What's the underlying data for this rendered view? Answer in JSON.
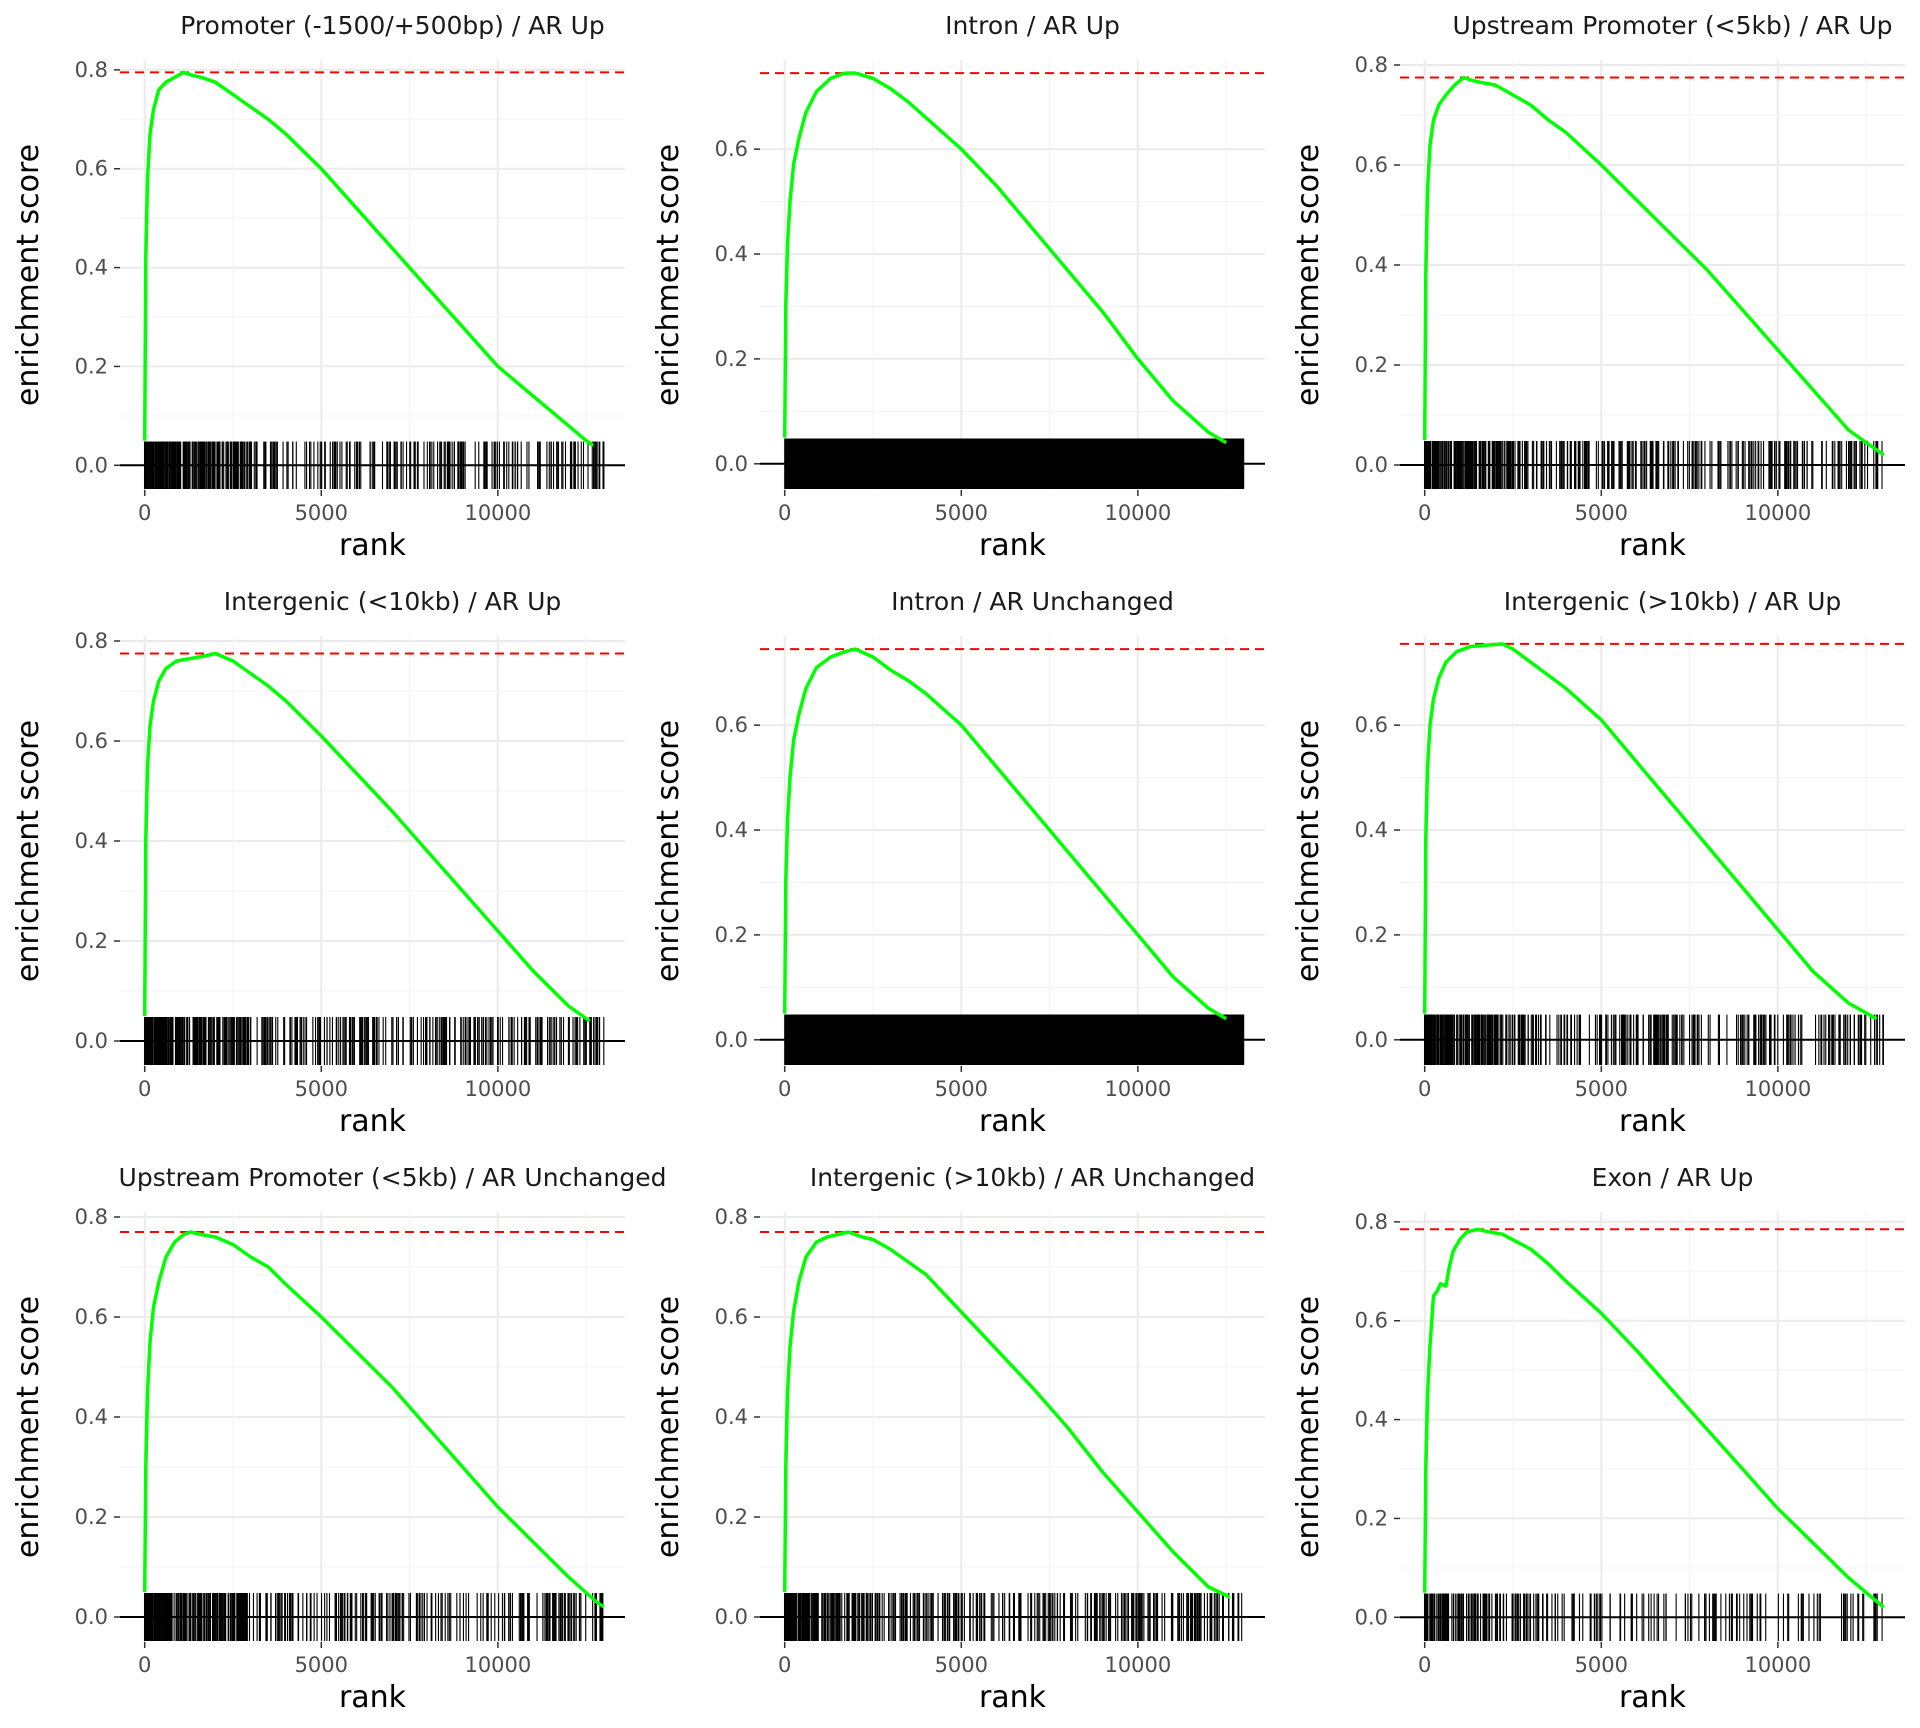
{
  "figure": {
    "colors": {
      "curve": "#00ff00",
      "max_line": "#ff0000",
      "ticks": "#000000",
      "grid": "#ebebeb",
      "background": "#ffffff"
    }
  },
  "chart_data": [
    {
      "type": "line",
      "title": "Promoter (-1500/+500bp) / AR Up",
      "xlabel": "rank",
      "ylabel": "enrichment score",
      "xlim": [
        -700,
        13600
      ],
      "ylim": [
        -0.05,
        0.82
      ],
      "xticks": [
        0,
        5000,
        10000
      ],
      "xtick_labels": [
        "0",
        "5000",
        "10000"
      ],
      "yticks": [
        0,
        0.2,
        0.4,
        0.6,
        0.8
      ],
      "ytick_labels": [
        "0.0",
        "0.2",
        "0.4",
        "0.6",
        "0.8"
      ],
      "max_es": 0.795,
      "grid": true,
      "hit_density": "medium",
      "hit_gap": [
        6150,
        6320
      ],
      "series": [
        {
          "x": [
            0,
            30,
            80,
            150,
            250,
            400,
            600,
            850,
            1100,
            1300,
            1600,
            2000,
            2500,
            3000,
            3500,
            4000,
            5000,
            6000,
            7000,
            8000,
            9000,
            10000,
            11000,
            12000,
            12500,
            12700
          ],
          "y": [
            0.05,
            0.42,
            0.58,
            0.67,
            0.72,
            0.76,
            0.775,
            0.785,
            0.795,
            0.79,
            0.785,
            0.775,
            0.75,
            0.725,
            0.7,
            0.67,
            0.6,
            0.52,
            0.44,
            0.36,
            0.28,
            0.2,
            0.14,
            0.08,
            0.05,
            0.04
          ]
        }
      ]
    },
    {
      "type": "line",
      "title": "Intron / AR Up",
      "xlabel": "rank",
      "ylabel": "enrichment score",
      "xlim": [
        -700,
        13600
      ],
      "ylim": [
        -0.05,
        0.77
      ],
      "xticks": [
        0,
        5000,
        10000
      ],
      "xtick_labels": [
        "0",
        "5000",
        "10000"
      ],
      "yticks": [
        0,
        0.2,
        0.4,
        0.6
      ],
      "ytick_labels": [
        "0.0",
        "0.2",
        "0.4",
        "0.6"
      ],
      "max_es": 0.745,
      "grid": true,
      "hit_density": "dense",
      "series": [
        {
          "x": [
            0,
            30,
            80,
            150,
            250,
            400,
            600,
            900,
            1300,
            1700,
            2000,
            2500,
            3000,
            3500,
            4000,
            5000,
            6000,
            7000,
            8000,
            9000,
            10000,
            11000,
            12000,
            12500
          ],
          "y": [
            0.05,
            0.3,
            0.42,
            0.5,
            0.57,
            0.62,
            0.67,
            0.71,
            0.735,
            0.745,
            0.745,
            0.735,
            0.715,
            0.69,
            0.66,
            0.6,
            0.53,
            0.45,
            0.37,
            0.29,
            0.2,
            0.12,
            0.06,
            0.04
          ]
        }
      ]
    },
    {
      "type": "line",
      "title": "Upstream Promoter (<5kb) / AR Up",
      "xlabel": "rank",
      "ylabel": "enrichment score",
      "xlim": [
        -700,
        13600
      ],
      "ylim": [
        -0.05,
        0.81
      ],
      "xticks": [
        0,
        5000,
        10000
      ],
      "xtick_labels": [
        "0",
        "5000",
        "10000"
      ],
      "yticks": [
        0,
        0.2,
        0.4,
        0.6,
        0.8
      ],
      "ytick_labels": [
        "0.0",
        "0.2",
        "0.4",
        "0.6",
        "0.8"
      ],
      "max_es": 0.775,
      "grid": true,
      "hit_density": "medium",
      "series": [
        {
          "x": [
            0,
            30,
            80,
            150,
            250,
            400,
            600,
            850,
            1100,
            1300,
            1600,
            2000,
            2500,
            3000,
            3500,
            4000,
            5000,
            6000,
            7000,
            8000,
            9000,
            10000,
            11000,
            12000,
            12800,
            13000
          ],
          "y": [
            0.05,
            0.38,
            0.55,
            0.64,
            0.69,
            0.72,
            0.74,
            0.76,
            0.775,
            0.77,
            0.765,
            0.76,
            0.74,
            0.72,
            0.69,
            0.665,
            0.6,
            0.53,
            0.46,
            0.39,
            0.31,
            0.23,
            0.15,
            0.07,
            0.03,
            0.02
          ]
        }
      ]
    },
    {
      "type": "line",
      "title": "Intergenic (<10kb) / AR Up",
      "xlabel": "rank",
      "ylabel": "enrichment score",
      "xlim": [
        -700,
        13600
      ],
      "ylim": [
        -0.05,
        0.81
      ],
      "xticks": [
        0,
        5000,
        10000
      ],
      "xtick_labels": [
        "0",
        "5000",
        "10000"
      ],
      "yticks": [
        0,
        0.2,
        0.4,
        0.6,
        0.8
      ],
      "ytick_labels": [
        "0.0",
        "0.2",
        "0.4",
        "0.6",
        "0.8"
      ],
      "max_es": 0.775,
      "grid": true,
      "hit_density": "medium",
      "series": [
        {
          "x": [
            0,
            30,
            80,
            150,
            250,
            400,
            600,
            900,
            1300,
            1700,
            2000,
            2500,
            3000,
            3500,
            4000,
            5000,
            6000,
            7000,
            8000,
            9000,
            10000,
            11000,
            12000,
            12600
          ],
          "y": [
            0.05,
            0.4,
            0.55,
            0.63,
            0.68,
            0.72,
            0.745,
            0.76,
            0.765,
            0.77,
            0.775,
            0.76,
            0.735,
            0.71,
            0.68,
            0.61,
            0.535,
            0.46,
            0.38,
            0.3,
            0.22,
            0.14,
            0.07,
            0.04
          ]
        }
      ]
    },
    {
      "type": "line",
      "title": "Intron / AR Unchanged",
      "xlabel": "rank",
      "ylabel": "enrichment score",
      "xlim": [
        -700,
        13600
      ],
      "ylim": [
        -0.05,
        0.77
      ],
      "xticks": [
        0,
        5000,
        10000
      ],
      "xtick_labels": [
        "0",
        "5000",
        "10000"
      ],
      "yticks": [
        0,
        0.2,
        0.4,
        0.6
      ],
      "ytick_labels": [
        "0.0",
        "0.2",
        "0.4",
        "0.6"
      ],
      "max_es": 0.745,
      "grid": true,
      "hit_density": "dense",
      "series": [
        {
          "x": [
            0,
            30,
            80,
            150,
            250,
            400,
            600,
            900,
            1300,
            1700,
            2000,
            2500,
            3000,
            3500,
            4000,
            5000,
            6000,
            7000,
            8000,
            9000,
            10000,
            11000,
            12000,
            12500
          ],
          "y": [
            0.05,
            0.3,
            0.42,
            0.5,
            0.57,
            0.62,
            0.67,
            0.71,
            0.73,
            0.74,
            0.745,
            0.73,
            0.705,
            0.685,
            0.66,
            0.6,
            0.52,
            0.44,
            0.36,
            0.28,
            0.2,
            0.12,
            0.06,
            0.04
          ]
        }
      ]
    },
    {
      "type": "line",
      "title": "Intergenic (>10kb) / AR Up",
      "xlabel": "rank",
      "ylabel": "enrichment score",
      "xlim": [
        -700,
        13600
      ],
      "ylim": [
        -0.05,
        0.77
      ],
      "xticks": [
        0,
        5000,
        10000
      ],
      "xtick_labels": [
        "0",
        "5000",
        "10000"
      ],
      "yticks": [
        0,
        0.2,
        0.4,
        0.6
      ],
      "ytick_labels": [
        "0.0",
        "0.2",
        "0.4",
        "0.6"
      ],
      "max_es": 0.755,
      "grid": true,
      "hit_density": "medium",
      "series": [
        {
          "x": [
            0,
            30,
            80,
            150,
            250,
            400,
            600,
            900,
            1300,
            1700,
            2200,
            2500,
            3000,
            3500,
            4000,
            5000,
            6000,
            7000,
            8000,
            9000,
            10000,
            11000,
            12000,
            12800
          ],
          "y": [
            0.05,
            0.38,
            0.52,
            0.6,
            0.65,
            0.69,
            0.72,
            0.74,
            0.75,
            0.752,
            0.755,
            0.745,
            0.72,
            0.695,
            0.67,
            0.61,
            0.53,
            0.45,
            0.37,
            0.29,
            0.21,
            0.13,
            0.07,
            0.04
          ]
        }
      ]
    },
    {
      "type": "line",
      "title": "Upstream Promoter (<5kb) / AR Unchanged",
      "xlabel": "rank",
      "ylabel": "enrichment score",
      "xlim": [
        -700,
        13600
      ],
      "ylim": [
        -0.05,
        0.81
      ],
      "xticks": [
        0,
        5000,
        10000
      ],
      "xtick_labels": [
        "0",
        "5000",
        "10000"
      ],
      "yticks": [
        0,
        0.2,
        0.4,
        0.6,
        0.8
      ],
      "ytick_labels": [
        "0.0",
        "0.2",
        "0.4",
        "0.6",
        "0.8"
      ],
      "max_es": 0.77,
      "grid": true,
      "hit_density": "medium",
      "series": [
        {
          "x": [
            0,
            30,
            80,
            150,
            250,
            400,
            600,
            850,
            1100,
            1300,
            1600,
            2000,
            2500,
            3000,
            3500,
            4000,
            5000,
            6000,
            7000,
            8000,
            9000,
            10000,
            11000,
            12000,
            12800,
            13000
          ],
          "y": [
            0.05,
            0.3,
            0.45,
            0.55,
            0.62,
            0.67,
            0.72,
            0.75,
            0.765,
            0.77,
            0.765,
            0.76,
            0.745,
            0.72,
            0.7,
            0.665,
            0.6,
            0.53,
            0.46,
            0.38,
            0.3,
            0.22,
            0.15,
            0.08,
            0.03,
            0.02
          ]
        }
      ]
    },
    {
      "type": "line",
      "title": "Intergenic (>10kb) / AR Unchanged",
      "xlabel": "rank",
      "ylabel": "enrichment score",
      "xlim": [
        -700,
        13600
      ],
      "ylim": [
        -0.05,
        0.81
      ],
      "xticks": [
        0,
        5000,
        10000
      ],
      "xtick_labels": [
        "0",
        "5000",
        "10000"
      ],
      "yticks": [
        0,
        0.2,
        0.4,
        0.6,
        0.8
      ],
      "ytick_labels": [
        "0.0",
        "0.2",
        "0.4",
        "0.6",
        "0.8"
      ],
      "max_es": 0.77,
      "grid": true,
      "hit_density": "medium",
      "series": [
        {
          "x": [
            0,
            30,
            80,
            150,
            250,
            400,
            600,
            900,
            1200,
            1500,
            1800,
            2200,
            2500,
            3000,
            3500,
            4000,
            5000,
            6000,
            7000,
            8000,
            9000,
            10000,
            11000,
            12000,
            12600
          ],
          "y": [
            0.05,
            0.3,
            0.45,
            0.54,
            0.61,
            0.67,
            0.72,
            0.75,
            0.76,
            0.765,
            0.77,
            0.76,
            0.755,
            0.735,
            0.71,
            0.685,
            0.61,
            0.535,
            0.46,
            0.38,
            0.29,
            0.21,
            0.13,
            0.06,
            0.04
          ]
        }
      ]
    },
    {
      "type": "line",
      "title": "Exon / AR Up",
      "xlabel": "rank",
      "ylabel": "enrichment score",
      "xlim": [
        -700,
        13600
      ],
      "ylim": [
        -0.05,
        0.82
      ],
      "xticks": [
        0,
        5000,
        10000
      ],
      "xtick_labels": [
        "0",
        "5000",
        "10000"
      ],
      "yticks": [
        0,
        0.2,
        0.4,
        0.6,
        0.8
      ],
      "ytick_labels": [
        "0.0",
        "0.2",
        "0.4",
        "0.6",
        "0.8"
      ],
      "max_es": 0.785,
      "grid": true,
      "hit_density": "sparse",
      "series": [
        {
          "x": [
            0,
            30,
            80,
            150,
            250,
            350,
            450,
            600,
            700,
            800,
            1000,
            1200,
            1500,
            1800,
            2200,
            2600,
            3000,
            3500,
            4000,
            5000,
            6000,
            7000,
            8000,
            9000,
            10000,
            11000,
            12000,
            13000
          ],
          "y": [
            0.05,
            0.3,
            0.45,
            0.55,
            0.65,
            0.66,
            0.675,
            0.67,
            0.71,
            0.74,
            0.765,
            0.78,
            0.785,
            0.78,
            0.775,
            0.76,
            0.745,
            0.715,
            0.68,
            0.615,
            0.54,
            0.46,
            0.38,
            0.3,
            0.22,
            0.15,
            0.08,
            0.02
          ]
        }
      ]
    }
  ]
}
